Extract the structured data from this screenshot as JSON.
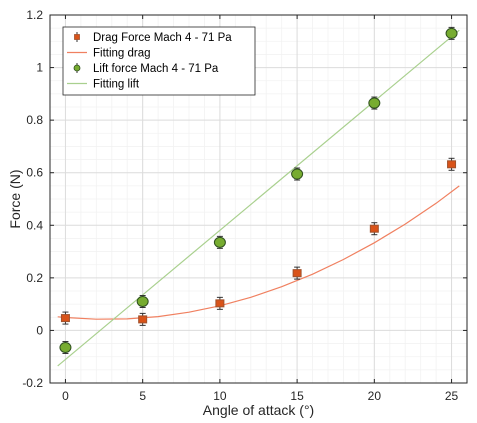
{
  "chart_data": {
    "type": "scatter",
    "xlabel": "Angle of attack (°)",
    "ylabel": "Force (N)",
    "xlim": [
      -1,
      26
    ],
    "ylim": [
      -0.2,
      1.2
    ],
    "xticks": [
      0,
      5,
      10,
      15,
      20,
      25
    ],
    "yticks": [
      -0.2,
      0,
      0.2,
      0.4,
      0.6,
      0.8,
      1,
      1.2
    ],
    "ytick_labels": [
      "-0.2",
      "0",
      "0.2",
      "0.4",
      "0.6",
      "0.8",
      "1",
      "1.2"
    ],
    "grid": true,
    "legend_position": "top-left",
    "series": [
      {
        "name": "Drag Force Mach 4 - 71 Pa",
        "kind": "points",
        "marker": "square",
        "color": "#a0522d",
        "fill": "#d95319",
        "x": [
          0,
          5,
          10,
          15,
          20,
          25
        ],
        "y": [
          0.047,
          0.042,
          0.103,
          0.218,
          0.387,
          0.632
        ]
      },
      {
        "name": "Fitting drag",
        "kind": "fit",
        "color": "#f08060",
        "x": [
          -0.5,
          0,
          2,
          4,
          6,
          8,
          10,
          12,
          14,
          16,
          18,
          20,
          22,
          24,
          25.5
        ],
        "y": [
          0.0518,
          0.0492,
          0.0426,
          0.0437,
          0.0526,
          0.0693,
          0.0938,
          0.1261,
          0.1662,
          0.2141,
          0.2698,
          0.3333,
          0.4046,
          0.4837,
          0.5498
        ]
      },
      {
        "name": "Lift force Mach 4 - 71 Pa",
        "kind": "points",
        "marker": "circle",
        "color": "#2f4f1f",
        "fill": "#77ac30",
        "x": [
          0,
          5,
          10,
          15,
          20,
          25
        ],
        "y": [
          -0.065,
          0.11,
          0.335,
          0.595,
          0.865,
          1.13
        ]
      },
      {
        "name": "Fitting lift",
        "kind": "fit",
        "color": "#a9d08e",
        "x": [
          -0.5,
          25.5
        ],
        "y": [
          -0.135,
          1.142
        ]
      }
    ]
  }
}
